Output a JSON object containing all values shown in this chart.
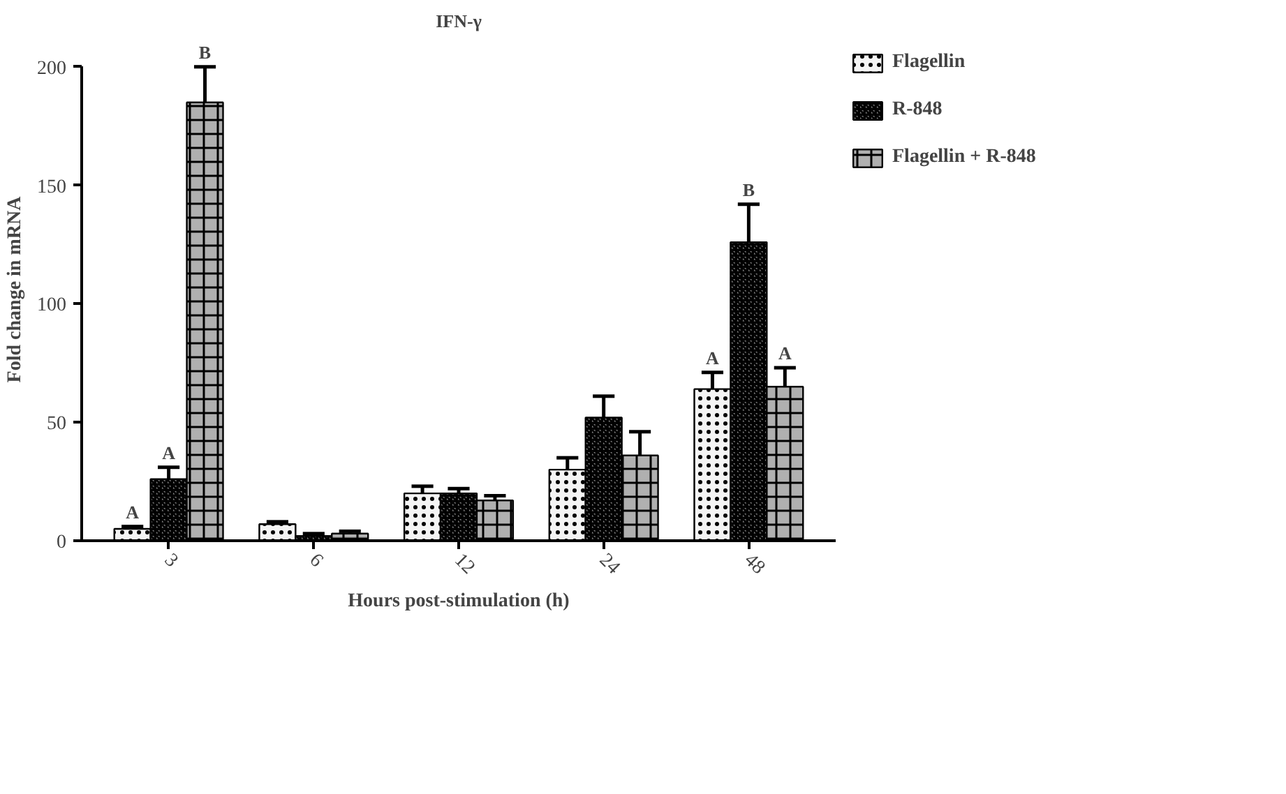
{
  "chart_data": {
    "type": "bar",
    "title": "IFN-γ",
    "xlabel": "Hours post-stimulation (h)",
    "ylabel": "Fold change in mRNA",
    "categories": [
      "3",
      "6",
      "12",
      "24",
      "48"
    ],
    "series": [
      {
        "name": "Flagellin",
        "color": "#f4f4f4",
        "values": [
          5,
          7,
          20,
          30,
          64
        ],
        "value_labels": [
          "A",
          null,
          null,
          null,
          "A"
        ],
        "errors": [
          [
            5,
            6
          ],
          [
            7,
            8
          ],
          [
            20,
            23
          ],
          [
            30,
            35
          ],
          [
            64,
            71
          ]
        ]
      },
      {
        "name": "R-848",
        "color": "#8c8c8c",
        "values": [
          26,
          2,
          20,
          52,
          126
        ],
        "value_labels": [
          "A",
          null,
          null,
          null,
          "B"
        ],
        "errors": [
          [
            26,
            31
          ],
          [
            2,
            3
          ],
          [
            20,
            22
          ],
          [
            52,
            61
          ],
          [
            126,
            142
          ]
        ]
      },
      {
        "name": "Flagellin + R-848",
        "color": "#b0b0b0",
        "values": [
          185,
          3,
          17,
          36,
          65
        ],
        "value_labels": [
          "B",
          null,
          null,
          null,
          "A"
        ],
        "errors": [
          [
            185,
            200
          ],
          [
            3,
            4
          ],
          [
            17,
            19
          ],
          [
            36,
            46
          ],
          [
            65,
            73
          ]
        ]
      }
    ],
    "ylim": [
      0,
      200
    ],
    "yticks": [
      0,
      50,
      100,
      150,
      200
    ],
    "grid": false,
    "legend": "right"
  }
}
